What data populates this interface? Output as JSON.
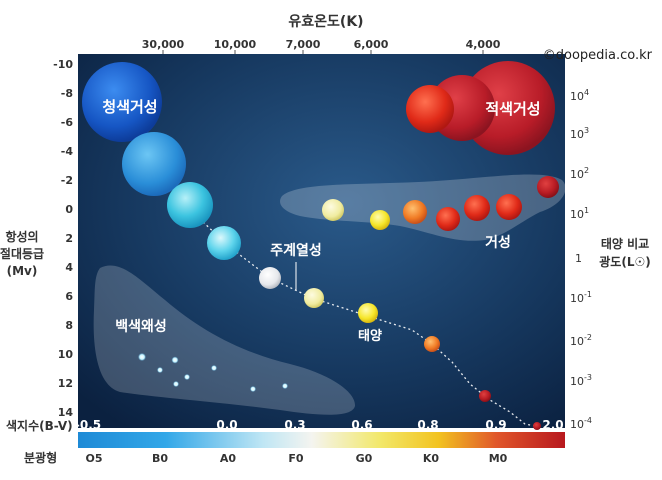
{
  "top_axis": {
    "title": "유효온도(K)",
    "ticks": [
      "30,000",
      "10,000",
      "7,000",
      "6,000",
      "4,000"
    ]
  },
  "copyright": "©doopedia.co.kr",
  "left_axis": {
    "title_lines": [
      "항성의",
      "절대등급",
      "(Mv)"
    ],
    "ticks": [
      "-10",
      "-8",
      "-6",
      "-4",
      "-2",
      "0",
      "2",
      "4",
      "6",
      "8",
      "10",
      "12",
      "14"
    ]
  },
  "right_axis": {
    "title_lines": [
      "태양 비교",
      "광도(L☉)"
    ],
    "ticks": [
      {
        "base": "10",
        "exp": "4"
      },
      {
        "base": "10",
        "exp": "3"
      },
      {
        "base": "10",
        "exp": "2"
      },
      {
        "base": "10",
        "exp": "1"
      },
      {
        "base": "1",
        "exp": ""
      },
      {
        "base": "10",
        "exp": "-1"
      },
      {
        "base": "10",
        "exp": "-2"
      },
      {
        "base": "10",
        "exp": "-3"
      },
      {
        "base": "10",
        "exp": "-4"
      }
    ]
  },
  "color_index": {
    "title": "색지수(B-V)",
    "ticks": [
      "-0.5",
      "0.0",
      "0.3",
      "0.6",
      "0.8",
      "0.9",
      "2.0"
    ]
  },
  "spectral": {
    "title": "분광형",
    "classes": [
      "O5",
      "B0",
      "A0",
      "F0",
      "G0",
      "K0",
      "M0"
    ]
  },
  "regions": {
    "blue_supergiants": "청색거성",
    "red_supergiants": "적색거성",
    "giants": "거성",
    "main_sequence": "주계열성",
    "sun": "태양",
    "white_dwarfs": "백색왜성"
  },
  "colors": {
    "blue": "#2b8fd8",
    "cyan": "#5fd0e8",
    "red": "#d42a1e",
    "yellow": "#f4e23a",
    "background": "#1a3d66"
  }
}
